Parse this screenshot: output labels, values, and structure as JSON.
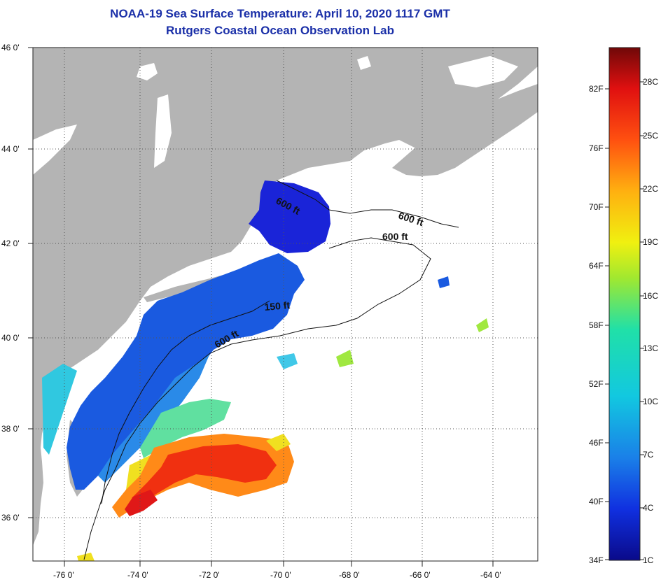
{
  "title": {
    "line1": "NOAA-19 Sea Surface Temperature:  April 10, 2020 1117 GMT",
    "line2": "Rutgers Coastal Ocean Observation Lab"
  },
  "axes": {
    "latitude_labels": [
      "46 0'",
      "44 0'",
      "42 0'",
      "40 0'",
      "38 0'",
      "36 0'"
    ],
    "longitude_labels": [
      "-76 0'",
      "-74 0'",
      "-72 0'",
      "-70 0'",
      "-68 0'",
      "-66 0'",
      "-64 0'"
    ]
  },
  "contour_labels": [
    "600 ft",
    "600 ft",
    "600 ft",
    "150 ft",
    "600 ft"
  ],
  "colorbar": {
    "fahrenheit_labels": [
      "82F",
      "76F",
      "70F",
      "64F",
      "58F",
      "52F",
      "46F",
      "40F",
      "34F"
    ],
    "celsius_labels": [
      "28C",
      "25C",
      "22C",
      "19C",
      "16C",
      "13C",
      "10C",
      "7C",
      "4C",
      "1C"
    ],
    "colors": [
      "#0a0a8a",
      "#1030e0",
      "#1a80e8",
      "#12c8e0",
      "#20e0a8",
      "#a0e830",
      "#f0f010",
      "#ffb010",
      "#ff5010",
      "#e01010",
      "#700808"
    ]
  },
  "colors": {
    "land": "#b4b4b4",
    "ocean_cloud": "#ffffff",
    "grid": "#555555"
  }
}
